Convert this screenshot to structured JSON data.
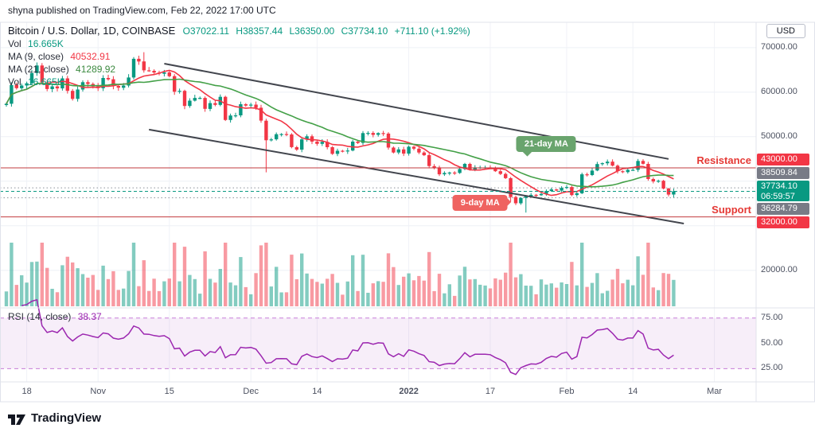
{
  "caption": "shyna published on TradingView.com, Feb 22, 2022 17:00 UTC",
  "legend": {
    "title": "Bitcoin / U.S. Dollar, 1D, COINBASE",
    "ohlc": {
      "o": "O37022.11",
      "h": "H38357.44",
      "l": "L36350.00",
      "c": "C37734.10",
      "change": "+711.10 (+1.92%)"
    },
    "vol_label": "Vol",
    "vol_value": "16.665K",
    "ma9_label": "MA (9, close)",
    "ma9_value": "40532.91",
    "ma21_label": "MA (21, close)",
    "ma21_value": "41289.92",
    "vol2_label": "Vol",
    "vol2_value": "16.665K",
    "rsi_label": "RSI (14, close)",
    "rsi_value": "38.37"
  },
  "price_axis": {
    "currency_button": "USD",
    "gridlines": [
      70000,
      60000,
      50000,
      40000,
      30000,
      20000
    ],
    "ticks": [
      {
        "label": "70000.00",
        "price": 70000
      },
      {
        "label": "60000.00",
        "price": 60000
      },
      {
        "label": "50000.00",
        "price": 50000
      },
      {
        "label": "20000.00",
        "price": 20000
      }
    ],
    "badges": [
      {
        "label": "43000.00",
        "price": 43000,
        "bg": "#f23645"
      },
      {
        "label": "38509.84",
        "price": 38509.84,
        "bg": "#787b86"
      },
      {
        "label": "37734.10",
        "sub": "06:59:57",
        "price": 37734.1,
        "bg": "#089981"
      },
      {
        "label": "36284.79",
        "price": 36284.79,
        "bg": "#787b86"
      },
      {
        "label": "32000.00",
        "price": 32000,
        "bg": "#f23645"
      }
    ]
  },
  "time_axis": {
    "labels": [
      {
        "label": "18",
        "index": 4
      },
      {
        "label": "Nov",
        "index": 18
      },
      {
        "label": "15",
        "index": 32
      },
      {
        "label": "Dec",
        "index": 48
      },
      {
        "label": "14",
        "index": 61
      },
      {
        "label": "2022",
        "index": 79,
        "bold": true
      },
      {
        "label": "17",
        "index": 95
      },
      {
        "label": "Feb",
        "index": 110
      },
      {
        "label": "14",
        "index": 123
      },
      {
        "label": "Mar",
        "index": 139
      }
    ]
  },
  "annotations": {
    "ma21_callout": {
      "text": "21-day MA",
      "bg": "#69a46d",
      "index": 106,
      "price": 48300
    },
    "ma9_callout": {
      "text": "9-day MA",
      "bg": "#ef6360",
      "index": 93,
      "price": 35100
    },
    "resistance": {
      "text": "Resistance",
      "price": 43000
    },
    "support": {
      "text": "Support",
      "price": 32000
    }
  },
  "footer": {
    "logo_text": "TradingView"
  },
  "chart_data": {
    "type": "candlestick",
    "symbol": "Bitcoin / U.S. Dollar",
    "interval": "1D",
    "exchange": "COINBASE",
    "bars": 132,
    "first_date": "2021-10-14",
    "last_date": "2022-02-22",
    "price_range_visible": [
      20000,
      70000
    ],
    "colors": {
      "up": "#089981",
      "down": "#f23645"
    },
    "closes": [
      57400,
      61600,
      60900,
      61500,
      62000,
      64300,
      66000,
      62200,
      60700,
      61300,
      60850,
      63100,
      60300,
      58500,
      60600,
      62250,
      61850,
      61300,
      60900,
      63200,
      62900,
      61400,
      61000,
      61500,
      63300,
      67500,
      66900,
      64900,
      64800,
      64400,
      64150,
      64450,
      63600,
      60100,
      60300,
      56900,
      58100,
      58700,
      58700,
      56250,
      57550,
      57150,
      58950,
      53750,
      54750,
      54800,
      57300,
      57000,
      57200,
      56500,
      53600,
      49200,
      49400,
      50550,
      50600,
      50500,
      47650,
      47100,
      49400,
      50100,
      48900,
      48400,
      48850,
      47650,
      46150,
      46850,
      46700,
      46900,
      48900,
      48600,
      50800,
      50850,
      50430,
      50800,
      50700,
      47550,
      46450,
      47150,
      46200,
      47750,
      47300,
      46450,
      45850,
      43400,
      43100,
      41550,
      41850,
      41950,
      41850,
      42750,
      43900,
      42600,
      43100,
      43100,
      43100,
      43000,
      42250,
      41650,
      40700,
      36450,
      35050,
      36250,
      36650,
      36950,
      36850,
      37150,
      37800,
      38150,
      37900,
      38500,
      38700,
      36900,
      37300,
      41550,
      41400,
      42400,
      43850,
      44050,
      44400,
      43500,
      42250,
      42050,
      42550,
      42550,
      44550,
      43900,
      40500,
      39950,
      40100,
      38350,
      37000,
      37734.1
    ],
    "last_candle": {
      "open": 37022.11,
      "high": 38357.44,
      "low": 36350.0,
      "close": 37734.1
    },
    "wick_overrides": [
      {
        "index": 27,
        "high": 68990
      },
      {
        "index": 51,
        "low": 42000
      },
      {
        "index": 99,
        "low": 35400
      },
      {
        "index": 102,
        "low": 32950
      }
    ],
    "moving_averages": [
      {
        "period": 9,
        "color": "#f23645"
      },
      {
        "period": 21,
        "color": "#43a047"
      }
    ],
    "trendlines": [
      {
        "i1": 31,
        "p1": 66400,
        "i2": 130,
        "p2": 45000
      },
      {
        "i1": 28,
        "p1": 51600,
        "i2": 133,
        "p2": 30500
      }
    ],
    "price_lines": [
      {
        "price": 43000,
        "style": "solid",
        "color": "#c23b3f",
        "role": "resistance"
      },
      {
        "price": 32000,
        "style": "solid",
        "color": "#c23b3f",
        "role": "support"
      },
      {
        "price": 37734.1,
        "style": "dashed",
        "color": "#089981",
        "role": "last-price"
      },
      {
        "price": 38509.84,
        "style": "dotted",
        "color": "#8b9099"
      },
      {
        "price": 36284.79,
        "style": "dotted",
        "color": "#8b9099"
      }
    ],
    "rsi": {
      "period": 14,
      "value": 38.37,
      "color": "#9c27b0",
      "band": [
        25,
        75
      ],
      "band_fill": "rgba(156,39,176,0.08)",
      "band_border": "#c77dd8",
      "ticks": [
        {
          "label": "75.00",
          "value": 75
        },
        {
          "label": "50.00",
          "value": 50
        },
        {
          "label": "25.00",
          "value": 25
        }
      ]
    }
  }
}
